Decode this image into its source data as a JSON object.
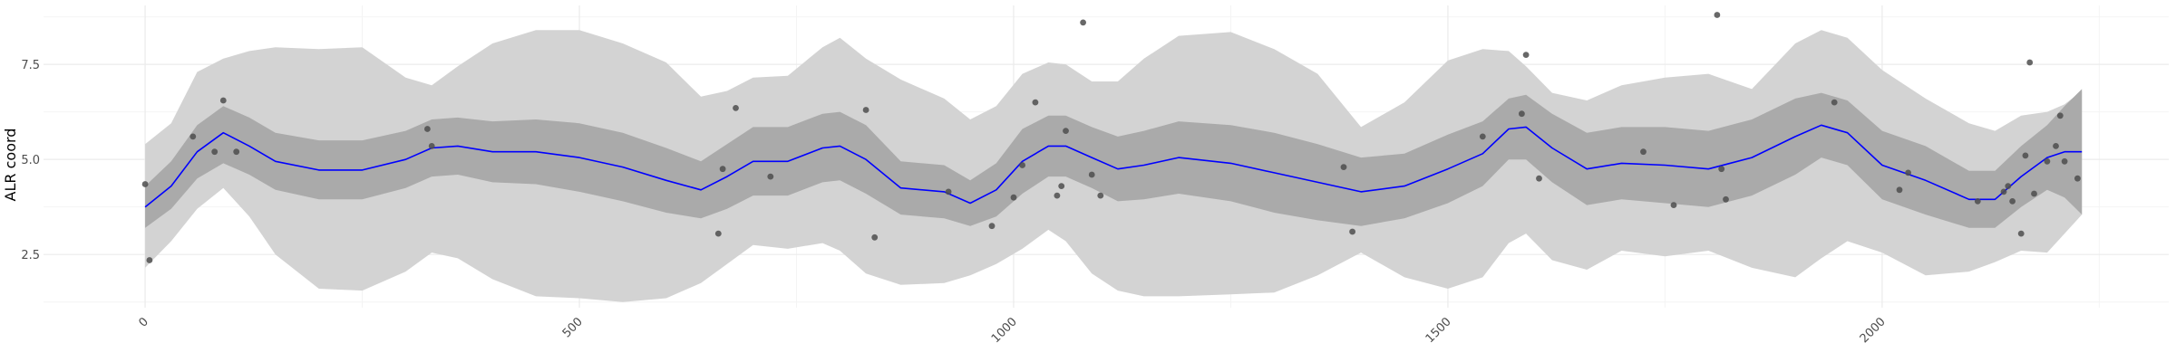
{
  "chart_data": {
    "type": "line",
    "title": "",
    "xlabel": "",
    "ylabel": "ALR coord",
    "xlim": [
      -117,
      2330
    ],
    "ylim": [
      1.1,
      9.05
    ],
    "x_ticks": [
      0,
      500,
      1000,
      1500,
      2000
    ],
    "x_tick_labels": [
      "0",
      "500",
      "1000",
      "1500",
      "2000"
    ],
    "y_ticks": [
      2.5,
      5.0,
      7.5
    ],
    "y_tick_labels": [
      "2.5",
      "5.0",
      "7.5"
    ],
    "grid": true,
    "legend": "none",
    "colors": {
      "line": "#0000ff",
      "inner_band": "#aaaaaa",
      "outer_band": "#d3d3d3",
      "points": "#4d4d4d",
      "grid_major": "#ebebeb",
      "grid_minor": "#f4f4f4"
    },
    "fit": {
      "x": [
        0,
        30,
        60,
        90,
        120,
        150,
        200,
        250,
        300,
        330,
        360,
        400,
        450,
        500,
        550,
        600,
        640,
        670,
        700,
        740,
        780,
        800,
        830,
        870,
        920,
        950,
        980,
        1010,
        1040,
        1060,
        1090,
        1120,
        1150,
        1190,
        1250,
        1300,
        1350,
        1400,
        1450,
        1500,
        1540,
        1570,
        1590,
        1620,
        1660,
        1700,
        1750,
        1800,
        1850,
        1900,
        1930,
        1960,
        2000,
        2050,
        2100,
        2130,
        2160,
        2190,
        2210,
        2230
      ],
      "y": [
        3.75,
        4.3,
        5.2,
        5.7,
        5.35,
        4.95,
        4.72,
        4.72,
        5.0,
        5.3,
        5.35,
        5.2,
        5.2,
        5.05,
        4.8,
        4.45,
        4.2,
        4.55,
        4.95,
        4.95,
        5.3,
        5.35,
        5.0,
        4.25,
        4.15,
        3.85,
        4.2,
        4.95,
        5.35,
        5.35,
        5.05,
        4.75,
        4.85,
        5.05,
        4.9,
        4.65,
        4.4,
        4.15,
        4.3,
        4.75,
        5.15,
        5.8,
        5.85,
        5.3,
        4.75,
        4.9,
        4.85,
        4.75,
        5.05,
        5.6,
        5.9,
        5.7,
        4.85,
        4.45,
        3.95,
        3.95,
        4.55,
        5.05,
        5.2,
        5.2
      ],
      "lower_inner": [
        3.2,
        3.7,
        4.5,
        4.9,
        4.6,
        4.2,
        3.95,
        3.95,
        4.25,
        4.55,
        4.6,
        4.4,
        4.35,
        4.15,
        3.9,
        3.6,
        3.45,
        3.7,
        4.05,
        4.05,
        4.4,
        4.45,
        4.1,
        3.55,
        3.45,
        3.25,
        3.5,
        4.1,
        4.55,
        4.55,
        4.25,
        3.9,
        3.95,
        4.1,
        3.9,
        3.6,
        3.4,
        3.25,
        3.45,
        3.85,
        4.3,
        5.0,
        5.0,
        4.4,
        3.8,
        3.95,
        3.85,
        3.75,
        4.05,
        4.6,
        5.05,
        4.85,
        3.95,
        3.55,
        3.2,
        3.2,
        3.75,
        4.2,
        4.0,
        3.55
      ],
      "upper_inner": [
        4.3,
        4.95,
        5.9,
        6.4,
        6.1,
        5.7,
        5.5,
        5.5,
        5.75,
        6.05,
        6.1,
        6.0,
        6.05,
        5.95,
        5.7,
        5.3,
        4.95,
        5.4,
        5.85,
        5.85,
        6.2,
        6.25,
        5.9,
        4.95,
        4.85,
        4.45,
        4.9,
        5.8,
        6.15,
        6.15,
        5.85,
        5.6,
        5.75,
        6.0,
        5.9,
        5.7,
        5.4,
        5.05,
        5.15,
        5.65,
        6.0,
        6.6,
        6.7,
        6.2,
        5.7,
        5.85,
        5.85,
        5.75,
        6.05,
        6.6,
        6.75,
        6.55,
        5.75,
        5.35,
        4.7,
        4.7,
        5.35,
        5.9,
        6.4,
        6.85
      ],
      "lower_outer": [
        2.15,
        2.85,
        3.7,
        4.25,
        3.5,
        2.5,
        1.6,
        1.55,
        2.05,
        2.55,
        2.4,
        1.85,
        1.4,
        1.35,
        1.25,
        1.35,
        1.75,
        2.25,
        2.75,
        2.65,
        2.8,
        2.6,
        2.0,
        1.7,
        1.75,
        1.95,
        2.25,
        2.65,
        3.15,
        2.85,
        2.0,
        1.55,
        1.4,
        1.4,
        1.45,
        1.5,
        1.95,
        2.55,
        1.9,
        1.6,
        1.9,
        2.8,
        3.05,
        2.35,
        2.1,
        2.6,
        2.45,
        2.6,
        2.15,
        1.9,
        2.4,
        2.85,
        2.55,
        1.95,
        2.05,
        2.3,
        2.6,
        2.55,
        3.05,
        3.55
      ],
      "upper_outer": [
        5.4,
        5.95,
        7.3,
        7.65,
        7.85,
        7.95,
        7.9,
        7.95,
        7.15,
        6.95,
        7.45,
        8.05,
        8.4,
        8.4,
        8.05,
        7.55,
        6.65,
        6.8,
        7.15,
        7.2,
        7.95,
        8.2,
        7.65,
        7.1,
        6.6,
        6.05,
        6.4,
        7.25,
        7.55,
        7.5,
        7.05,
        7.05,
        7.65,
        8.25,
        8.35,
        7.9,
        7.25,
        5.85,
        6.5,
        7.6,
        7.9,
        7.85,
        7.45,
        6.75,
        6.55,
        6.95,
        7.15,
        7.25,
        6.85,
        8.05,
        8.4,
        8.2,
        7.35,
        6.6,
        5.95,
        5.75,
        6.15,
        6.25,
        6.45,
        6.8
      ]
    },
    "points": {
      "x": [
        0,
        5,
        55,
        80,
        90,
        105,
        325,
        330,
        660,
        665,
        680,
        720,
        830,
        840,
        925,
        975,
        1000,
        1010,
        1025,
        1050,
        1055,
        1060,
        1080,
        1090,
        1100,
        1380,
        1390,
        1540,
        1585,
        1590,
        1605,
        1725,
        1760,
        1810,
        1815,
        1820,
        1945,
        2020,
        2030,
        2110,
        2140,
        2145,
        2150,
        2160,
        2165,
        2170,
        2175,
        2190,
        2200,
        2205,
        2210,
        2225
      ],
      "y": [
        4.35,
        2.35,
        5.6,
        5.2,
        6.55,
        5.2,
        5.8,
        5.35,
        3.05,
        4.75,
        6.35,
        4.55,
        6.3,
        2.95,
        4.15,
        3.25,
        4.0,
        4.85,
        6.5,
        4.05,
        4.3,
        5.75,
        8.6,
        4.6,
        4.05,
        4.8,
        3.1,
        5.6,
        6.2,
        7.75,
        4.5,
        5.2,
        3.8,
        8.8,
        4.75,
        3.95,
        6.5,
        4.2,
        4.65,
        3.9,
        4.15,
        4.3,
        3.9,
        3.05,
        5.1,
        7.55,
        4.1,
        4.95,
        5.35,
        6.15,
        4.95,
        4.5
      ]
    }
  }
}
